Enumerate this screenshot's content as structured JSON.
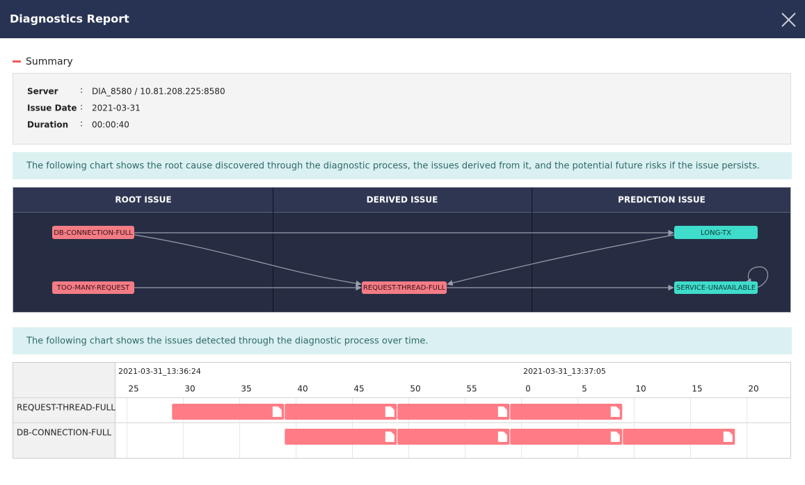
{
  "header": {
    "title": "Diagnostics Report"
  },
  "summary": {
    "title": "Summary",
    "fields": [
      {
        "label": "Server",
        "value": "DIA_8580 / 10.81.208.225:8580"
      },
      {
        "label": "Issue Date",
        "value": "2021-03-31"
      },
      {
        "label": "Duration",
        "value": "00:00:40"
      }
    ]
  },
  "flow_note": "The following chart shows the root cause discovered through the diagnostic process, the issues derived from it, and the potential future risks if the issue persists.",
  "flow": {
    "columns": [
      "ROOT ISSUE",
      "DERIVED ISSUE",
      "PREDICTION ISSUE"
    ],
    "nodes": [
      "DB-CONNECTION-FULL",
      "TOO-MANY-REQUEST",
      "REQUEST-THREAD-FULL",
      "LONG-TX",
      "SERVICE-UNAVAILABLE"
    ]
  },
  "timeline_note": "The following chart shows the issues detected through the diagnostic process over time.",
  "timeline": {
    "time_labels": [
      "2021-03-31_13:36:24",
      "2021-03-31_13:37:05"
    ],
    "ticks": [
      25,
      30,
      35,
      40,
      45,
      50,
      55,
      {
        "value": 60,
        "label": "0"
      },
      {
        "value": 65,
        "label": "5"
      },
      {
        "value": 70,
        "label": "10"
      },
      {
        "value": 75,
        "label": "15"
      },
      {
        "value": 80,
        "label": "20"
      }
    ],
    "color": "#ff7b85",
    "rows": [
      {
        "label": "REQUEST-THREAD-FULL",
        "segments": [
          {
            "start": 29,
            "end": 39
          },
          {
            "start": 39,
            "end": 49
          },
          {
            "start": 49,
            "end": 59
          },
          {
            "start": 59,
            "end": 69
          }
        ]
      },
      {
        "label": "DB-CONNECTION-FULL",
        "segments": [
          {
            "start": 39,
            "end": 49
          },
          {
            "start": 49,
            "end": 59
          },
          {
            "start": 59,
            "end": 69
          },
          {
            "start": 69,
            "end": 79
          }
        ]
      }
    ]
  }
}
